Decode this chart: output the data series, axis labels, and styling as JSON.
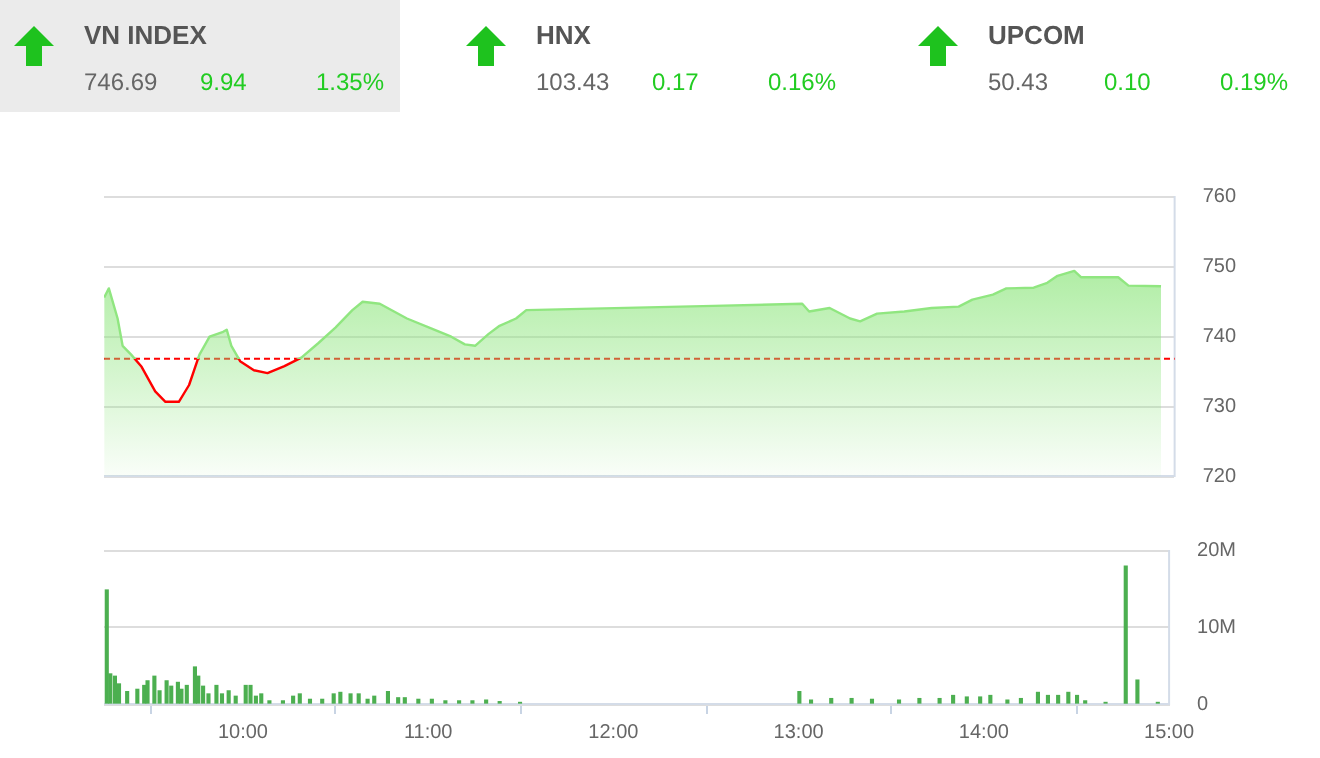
{
  "chart_data": [
    {
      "type": "other",
      "annotations": [
        "VN INDEX",
        "746.69",
        "9.94",
        "1.35%",
        "HNX",
        "103.43",
        "0.17",
        "0.16%",
        "UPCOM",
        "50.43",
        "0.10",
        "0.19%"
      ]
    },
    {
      "type": "area",
      "x": [
        9.251,
        9.276,
        9.323,
        9.35,
        9.397,
        9.452,
        9.525,
        9.58,
        9.652,
        9.707,
        9.762,
        9.817,
        9.89,
        9.909,
        9.934,
        9.981,
        10.055,
        10.128,
        10.219,
        10.31,
        10.402,
        10.493,
        10.584,
        10.639,
        10.731,
        10.877,
        11.023,
        11.115,
        11.188,
        11.243,
        11.316,
        11.371,
        11.463,
        11.518,
        12.524,
        13.0,
        13.037,
        13.147,
        13.257,
        13.311,
        13.402,
        13.548,
        13.695,
        13.84,
        13.914,
        14.024,
        14.096,
        14.243,
        14.316,
        14.371,
        14.461,
        14.497,
        14.697,
        14.752,
        14.927
      ],
      "series": [
        {
          "color": "#90e680",
          "values": [
            745.5,
            746.8,
            742.5,
            738.6,
            737.3,
            735.6,
            732.1,
            730.6,
            730.6,
            733.0,
            737.3,
            739.9,
            740.6,
            740.9,
            738.6,
            736.4,
            735.1,
            734.7,
            735.7,
            736.9,
            739.0,
            741.2,
            743.7,
            744.9,
            744.6,
            742.5,
            740.9,
            739.9,
            738.8,
            738.6,
            740.3,
            741.4,
            742.5,
            743.7,
            744.3,
            744.6,
            743.5,
            744.0,
            742.5,
            742.1,
            743.2,
            743.5,
            744.0,
            744.2,
            745.2,
            745.9,
            746.8,
            746.9,
            747.6,
            748.6,
            749.3,
            748.4,
            748.4,
            747.2,
            747.1
          ]
        }
      ],
      "xlim": [
        9.25,
        15
      ],
      "ylim": [
        720,
        760
      ],
      "yticks": [
        720,
        730,
        740,
        750,
        760
      ],
      "ref_lines": [
        {
          "axis": "y",
          "value": 736.75,
          "color": "#ff0000",
          "line_style": "dashed"
        }
      ],
      "grid": "y",
      "tick_labels": "y"
    },
    {
      "type": "bar",
      "color": "#4caf50",
      "x": [
        9.265,
        9.284,
        9.309,
        9.331,
        9.375,
        9.43,
        9.467,
        9.485,
        9.522,
        9.55,
        9.588,
        9.613,
        9.649,
        9.668,
        9.697,
        9.741,
        9.759,
        9.785,
        9.814,
        9.857,
        9.887,
        9.923,
        9.961,
        10.015,
        10.041,
        10.07,
        10.099,
        10.143,
        10.216,
        10.271,
        10.307,
        10.362,
        10.428,
        10.49,
        10.526,
        10.581,
        10.625,
        10.673,
        10.709,
        10.783,
        10.838,
        10.874,
        10.947,
        11.02,
        11.093,
        11.167,
        11.239,
        11.313,
        11.386,
        11.496,
        13.004,
        13.067,
        13.176,
        13.286,
        13.396,
        13.542,
        13.652,
        13.761,
        13.834,
        13.908,
        13.98,
        14.035,
        14.127,
        14.2,
        14.292,
        14.346,
        14.401,
        14.456,
        14.503,
        14.547,
        14.657,
        14.766,
        14.829,
        14.939
      ],
      "values": [
        14.8,
        3.9,
        3.6,
        2.6,
        1.6,
        1.9,
        2.4,
        3.0,
        3.6,
        1.7,
        3.0,
        2.3,
        2.8,
        1.9,
        2.4,
        4.8,
        3.6,
        2.3,
        1.3,
        2.4,
        1.3,
        1.7,
        1.0,
        2.4,
        2.4,
        1.0,
        1.3,
        0.4,
        0.4,
        1.0,
        1.3,
        0.6,
        0.6,
        1.3,
        1.5,
        1.3,
        1.3,
        0.6,
        1.0,
        1.6,
        0.8,
        0.8,
        0.6,
        0.6,
        0.4,
        0.4,
        0.4,
        0.5,
        0.3,
        0.2,
        1.6,
        0.5,
        0.7,
        0.7,
        0.6,
        0.5,
        0.7,
        0.7,
        1.1,
        0.9,
        0.9,
        1.1,
        0.5,
        0.7,
        1.5,
        1.1,
        1.1,
        1.5,
        1.1,
        0.4,
        0.2,
        17.9,
        3.1,
        0.2
      ],
      "xlim": [
        9.25,
        15
      ],
      "xticks": [
        {
          "value": 10,
          "label": "10:00"
        },
        {
          "value": 11,
          "label": "11:00"
        },
        {
          "value": 12,
          "label": "12:00"
        },
        {
          "value": 13,
          "label": "13:00"
        },
        {
          "value": 14,
          "label": "14:00"
        },
        {
          "value": 15,
          "label": "15:00"
        }
      ],
      "ylim": [
        0,
        20
      ],
      "yticks": [
        0,
        {
          "value": 10,
          "label": "10M"
        },
        {
          "value": 20,
          "label": "20M"
        }
      ],
      "grid": "y"
    }
  ]
}
